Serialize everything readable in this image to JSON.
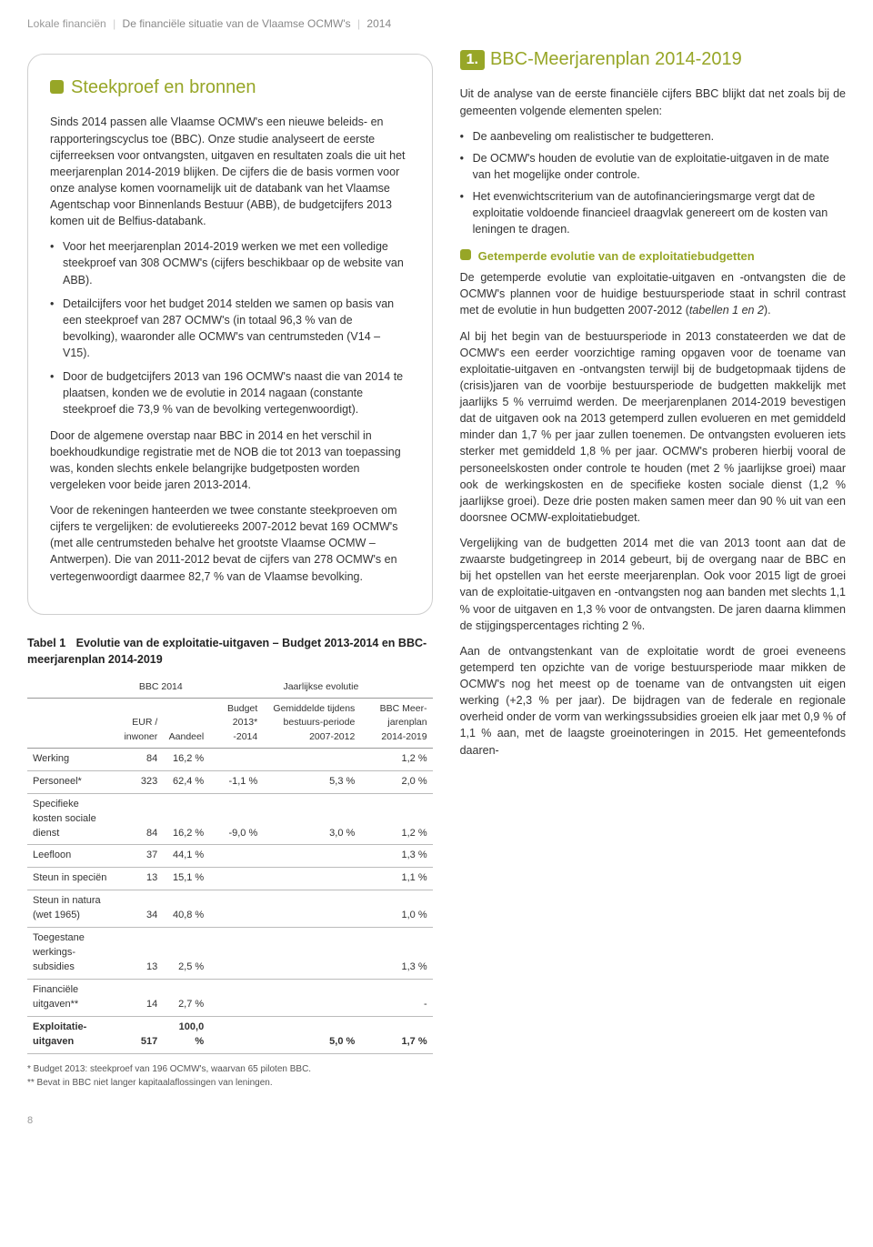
{
  "header": {
    "category": "Lokale financiën",
    "title": "De financiële situatie van de Vlaamse OCMW's",
    "year": "2014"
  },
  "box": {
    "title": "Steekproef en bronnen",
    "p1": "Sinds 2014 passen alle Vlaamse OCMW's een nieuwe beleids- en rapporteringscyclus toe (BBC). Onze studie analyseert de eerste cijferreeksen voor ontvangsten, uitgaven en resultaten zoals die uit het meerjarenplan 2014-2019 blijken. De cijfers die de basis vormen voor onze analyse komen voornamelijk uit de databank van het Vlaamse Agentschap voor Binnenlands Bestuur (ABB), de budgetcijfers 2013 komen uit de Belfius-databank.",
    "li1": "Voor het meerjarenplan 2014-2019 werken we met een volledige steekproef van 308 OCMW's (cijfers beschikbaar op de website van ABB).",
    "li2": "Detailcijfers voor het budget 2014 stelden we samen op basis van een steekproef van 287 OCMW's (in totaal 96,3 % van de bevolking), waaronder alle OCMW's van centrumsteden (V14 – V15).",
    "li3": "Door de budgetcijfers 2013 van 196 OCMW's naast die van 2014 te plaatsen, konden we de evolutie in 2014 nagaan (constante steekproef die 73,9 % van de bevolking vertegenwoordigt).",
    "p2": "Door de algemene overstap naar BBC in 2014 en het verschil in boekhoudkundige registratie met de NOB die tot 2013 van toepassing was, konden slechts enkele belangrijke budgetposten worden vergeleken voor beide jaren 2013-2014.",
    "p3": "Voor de rekeningen hanteerden we twee constante steekproeven om cijfers te vergelijken: de evolutiereeks 2007-2012 bevat 169 OCMW's (met alle centrumsteden behalve het grootste Vlaamse OCMW – Antwerpen). Die van 2011-2012 bevat de cijfers van 278 OCMW's en vertegenwoordigt daarmee 82,7 % van de Vlaamse bevolking."
  },
  "table1": {
    "label": "Tabel 1",
    "caption": "Evolutie van de exploitatie-uitgaven – Budget 2013-2014 en BBC-meerjarenplan 2014-2019",
    "group1": "BBC 2014",
    "group2": "Jaarlijkse evolutie",
    "col1": "",
    "col2": "EUR / inwoner",
    "col3": "Aandeel",
    "col4": "Budget 2013* -2014",
    "col5": "Gemiddelde tijdens bestuurs-periode 2007-2012",
    "col6": "BBC Meer-jarenplan 2014-2019",
    "rows": [
      {
        "name": "Werking",
        "eur": "84",
        "aandeel": "16,2 %",
        "b": "",
        "g": "",
        "m": "1,2 %"
      },
      {
        "name": "Personeel*",
        "eur": "323",
        "aandeel": "62,4 %",
        "b": "-1,1 %",
        "g": "5,3 %",
        "m": "2,0 %"
      },
      {
        "name": "Specifieke kosten sociale dienst",
        "eur": "84",
        "aandeel": "16,2 %",
        "b": "-9,0 %",
        "g": "3,0 %",
        "m": "1,2 %"
      },
      {
        "name": "Leefloon",
        "eur": "37",
        "aandeel": "44,1 %",
        "b": "",
        "g": "",
        "m": "1,3 %"
      },
      {
        "name": "Steun in speciën",
        "eur": "13",
        "aandeel": "15,1 %",
        "b": "",
        "g": "",
        "m": "1,1 %"
      },
      {
        "name": "Steun in natura (wet 1965)",
        "eur": "34",
        "aandeel": "40,8 %",
        "b": "",
        "g": "",
        "m": "1,0 %"
      },
      {
        "name": "Toegestane werkings-subsidies",
        "eur": "13",
        "aandeel": "2,5 %",
        "b": "",
        "g": "",
        "m": "1,3 %"
      },
      {
        "name": "Financiële uitgaven**",
        "eur": "14",
        "aandeel": "2,7 %",
        "b": "",
        "g": "",
        "m": "-"
      },
      {
        "name": "Exploitatie-uitgaven",
        "eur": "517",
        "aandeel": "100,0 %",
        "b": "",
        "g": "5,0 %",
        "m": "1,7 %"
      }
    ],
    "fn1": "*   Budget 2013: steekproef van 196 OCMW's, waarvan 65 piloten BBC.",
    "fn2": "** Bevat in BBC niet langer kapitaalaflossingen van leningen."
  },
  "right": {
    "badge": "1.",
    "heading": "BBC-Meerjarenplan 2014-2019",
    "intro": "Uit de analyse van de eerste financiële cijfers BBC blijkt dat net zoals bij de gemeenten volgende elementen spelen:",
    "li1": "De aanbeveling om realistischer te budgetteren.",
    "li2": "De OCMW's houden de evolutie van de exploitatie-uitgaven in de mate van het mogelijke onder controle.",
    "li3": "Het evenwichtscriterium van de autofinancieringsmarge vergt dat de exploitatie voldoende financieel draagvlak genereert om de kosten van leningen te dragen.",
    "sub": "Getemperde evolutie van de exploitatiebudgetten",
    "p1a": "De getemperde evolutie van exploitatie-uitgaven en -ontvangsten die de OCMW's plannen voor de huidige bestuursperiode staat in schril contrast met de evolutie in hun budgetten 2007-2012 (",
    "p1b": "tabellen 1 en 2",
    "p1c": ").",
    "p2": "Al bij het begin van de bestuursperiode in 2013 constateerden we dat de OCMW's een eerder voorzichtige raming opgaven voor de toename van exploitatie-uitgaven en -ontvangsten terwijl bij de budgetopmaak tijdens de (crisis)jaren van de voorbije bestuursperiode de budgetten makkelijk met jaarlijks 5 % verruimd werden. De meerjarenplanen 2014-2019 bevestigen dat de uitgaven ook na 2013 getemperd zullen evolueren en met gemiddeld minder dan 1,7 % per jaar zullen toenemen. De ontvangsten evolueren iets sterker met gemiddeld 1,8 % per jaar. OCMW's proberen hierbij vooral de personeelskosten onder controle te houden (met 2 % jaarlijkse groei) maar ook de werkingskosten en de specifieke kosten sociale dienst (1,2 % jaarlijkse groei). Deze drie posten maken samen meer dan 90 % uit van een doorsnee OCMW-exploitatiebudget.",
    "p3": "Vergelijking van de budgetten 2014 met die van 2013 toont aan dat de zwaarste budgetingreep in 2014 gebeurt, bij de overgang naar de BBC en bij het opstellen van het eerste meerjarenplan. Ook voor 2015 ligt de groei van de exploitatie-uitgaven en -ontvangsten nog aan banden met slechts 1,1 % voor de uitgaven en 1,3 % voor de ontvangsten. De jaren daarna klimmen de stijgingspercentages richting 2 %.",
    "p4": "Aan de ontvangstenkant van de exploitatie wordt de groei eveneens getemperd ten opzichte van de vorige bestuursperiode maar mikken de OCMW's nog het meest op de toename van de ontvangsten uit eigen werking (+2,3 % per jaar). De bijdragen van de federale en regionale overheid onder de vorm van werkingssubsidies groeien elk jaar met 0,9 % of 1,1 % aan, met de laagste groeinoteringen in 2015. Het gemeentefonds daaren-"
  },
  "pageNum": "8"
}
